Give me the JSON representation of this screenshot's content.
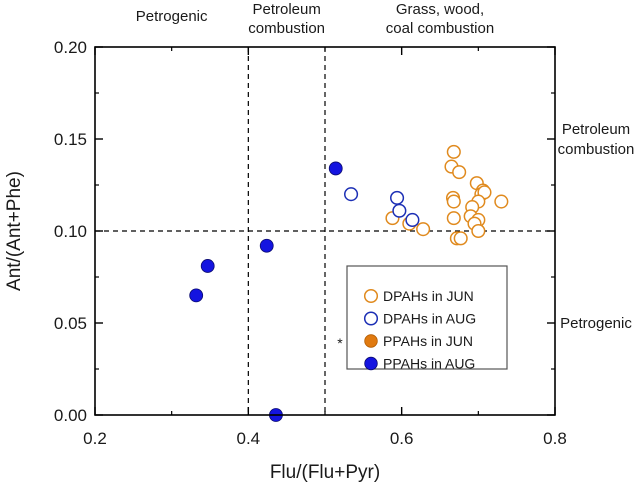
{
  "chart_data": {
    "type": "scatter",
    "xlabel": "Flu/(Flu+Pyr)",
    "ylabel": "Ant/(Ant+Phe)",
    "xlim": [
      0.2,
      0.8
    ],
    "ylim": [
      0.0,
      0.2
    ],
    "xticks": [
      0.2,
      0.4,
      0.6,
      0.8
    ],
    "xtick_labels": [
      "0.2",
      "0.4",
      "0.6",
      "0.8"
    ],
    "yticks": [
      0.0,
      0.05,
      0.1,
      0.15,
      0.2
    ],
    "ytick_labels": [
      "0.00",
      "0.05",
      "0.10",
      "0.15",
      "0.20"
    ],
    "reference_lines": [
      {
        "axis": "x",
        "value": 0.4,
        "style": "dashed"
      },
      {
        "axis": "x",
        "value": 0.5,
        "style": "dashed"
      },
      {
        "axis": "y",
        "value": 0.1,
        "style": "dashed"
      }
    ],
    "top_labels": [
      {
        "lines": [
          "Petrogenic"
        ],
        "x": 0.3
      },
      {
        "lines": [
          "Petroleum",
          "combustion"
        ],
        "x": 0.45
      },
      {
        "lines": [
          "Grass, wood,",
          "coal combustion"
        ],
        "x": 0.65
      }
    ],
    "right_labels": [
      {
        "lines": [
          "Petroleum",
          "combustion"
        ],
        "y": 0.15
      },
      {
        "lines": [
          "Petrogenic"
        ],
        "y": 0.05
      }
    ],
    "legend": {
      "position": "lower-right",
      "entries": [
        {
          "series": "DPAHs in JUN",
          "prefix": ""
        },
        {
          "series": "DPAHs in AUG",
          "prefix": ""
        },
        {
          "series": "PPAHs in JUN",
          "prefix": "*"
        },
        {
          "series": "PPAHs in AUG",
          "prefix": ""
        }
      ]
    },
    "series": [
      {
        "name": "DPAHs in JUN",
        "color": "#E08A1E",
        "filled": false,
        "points": [
          [
            0.668,
            0.143
          ],
          [
            0.665,
            0.135
          ],
          [
            0.675,
            0.132
          ],
          [
            0.698,
            0.126
          ],
          [
            0.706,
            0.122
          ],
          [
            0.704,
            0.12
          ],
          [
            0.708,
            0.121
          ],
          [
            0.667,
            0.118
          ],
          [
            0.668,
            0.116
          ],
          [
            0.7,
            0.116
          ],
          [
            0.692,
            0.113
          ],
          [
            0.73,
            0.116
          ],
          [
            0.69,
            0.108
          ],
          [
            0.668,
            0.107
          ],
          [
            0.588,
            0.107
          ],
          [
            0.61,
            0.104
          ],
          [
            0.7,
            0.106
          ],
          [
            0.695,
            0.104
          ],
          [
            0.628,
            0.101
          ],
          [
            0.7,
            0.1
          ],
          [
            0.672,
            0.096
          ],
          [
            0.677,
            0.096
          ]
        ]
      },
      {
        "name": "DPAHs in AUG",
        "color": "#1C2FB5",
        "filled": false,
        "points": [
          [
            0.534,
            0.12
          ],
          [
            0.594,
            0.118
          ],
          [
            0.597,
            0.111
          ],
          [
            0.614,
            0.106
          ]
        ]
      },
      {
        "name": "PPAHs in JUN",
        "color": "#E07A10",
        "filled": true,
        "points": []
      },
      {
        "name": "PPAHs in AUG",
        "color": "#1414E0",
        "filled": true,
        "points": [
          [
            0.514,
            0.134
          ],
          [
            0.424,
            0.092
          ],
          [
            0.347,
            0.081
          ],
          [
            0.332,
            0.065
          ],
          [
            0.436,
            0.0
          ]
        ]
      }
    ]
  }
}
